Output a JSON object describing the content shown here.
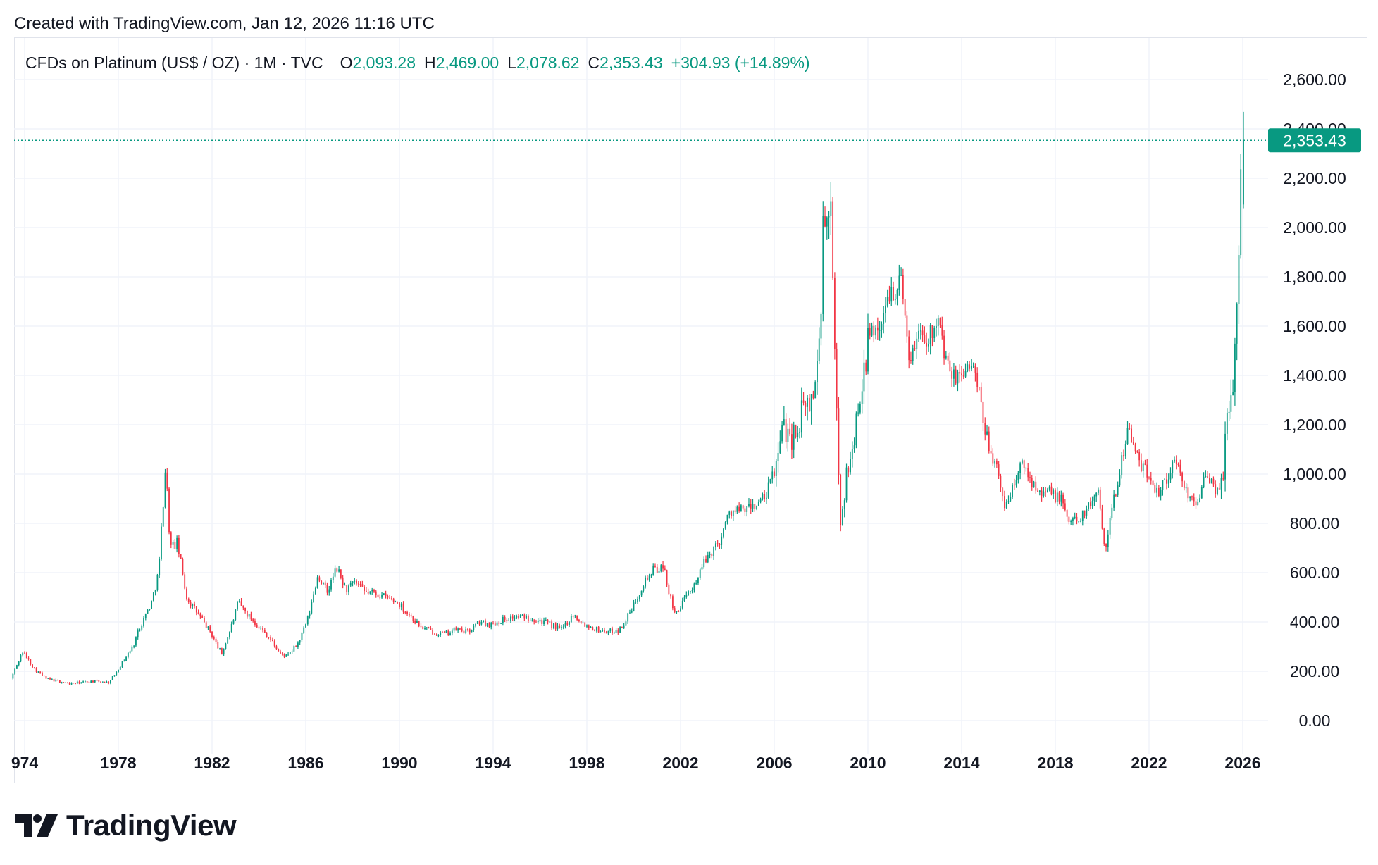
{
  "header": {
    "created_text": "Created with TradingView.com, Jan 12, 2026 11:16 UTC"
  },
  "legend": {
    "symbol": "CFDs on Platinum (US$ / OZ) · 1M · TVC",
    "open_label": "O",
    "open": "2,093.28",
    "high_label": "H",
    "high": "2,469.00",
    "low_label": "L",
    "low": "2,078.62",
    "close_label": "C",
    "close": "2,353.43",
    "change": "+304.93 (+14.89%)"
  },
  "price_tag": "2,353.43",
  "brand": {
    "name": "TradingView"
  },
  "colors": {
    "up": "#089981",
    "down": "#f23645",
    "grid": "#f0f3fa",
    "text": "#131722"
  },
  "chart_data": {
    "type": "candlestick",
    "title": "CFDs on Platinum (US$ / OZ) · 1M · TVC",
    "xlabel": "",
    "ylabel": "",
    "x_ticks": [
      "974",
      "1978",
      "1982",
      "1986",
      "1990",
      "1994",
      "1998",
      "2002",
      "2006",
      "2010",
      "2014",
      "2018",
      "2022",
      "2026"
    ],
    "y_ticks": [
      "0.00",
      "200.00",
      "400.00",
      "600.00",
      "800.00",
      "1,000.00",
      "1,200.00",
      "1,400.00",
      "1,600.00",
      "1,800.00",
      "2,000.00",
      "2,200.00",
      "2,400.00",
      "2,600.00"
    ],
    "ylim": [
      -100,
      2700
    ],
    "xlim": [
      1973.5,
      2027.0
    ],
    "last_close": 2353.43,
    "series": [
      {
        "name": "CFDs on Platinum (US$ / OZ)",
        "interval": "1M",
        "points": [
          [
            1973.5,
            170
          ],
          [
            1974.0,
            280
          ],
          [
            1974.5,
            210
          ],
          [
            1975.0,
            170
          ],
          [
            1976.0,
            150
          ],
          [
            1977.0,
            160
          ],
          [
            1977.7,
            155
          ],
          [
            1978.0,
            200
          ],
          [
            1978.7,
            300
          ],
          [
            1979.0,
            380
          ],
          [
            1979.5,
            480
          ],
          [
            1979.8,
            600
          ],
          [
            1980.1,
            1040
          ],
          [
            1980.3,
            700
          ],
          [
            1980.6,
            720
          ],
          [
            1981.0,
            500
          ],
          [
            1981.5,
            430
          ],
          [
            1982.0,
            360
          ],
          [
            1982.5,
            270
          ],
          [
            1982.9,
            380
          ],
          [
            1983.2,
            480
          ],
          [
            1983.6,
            430
          ],
          [
            1984.0,
            390
          ],
          [
            1984.5,
            340
          ],
          [
            1985.0,
            270
          ],
          [
            1985.3,
            260
          ],
          [
            1985.8,
            320
          ],
          [
            1986.2,
            420
          ],
          [
            1986.6,
            590
          ],
          [
            1987.0,
            520
          ],
          [
            1987.4,
            620
          ],
          [
            1987.8,
            530
          ],
          [
            1988.2,
            560
          ],
          [
            1988.6,
            520
          ],
          [
            1989.0,
            520
          ],
          [
            1989.5,
            500
          ],
          [
            1990.0,
            480
          ],
          [
            1990.5,
            430
          ],
          [
            1991.0,
            380
          ],
          [
            1991.5,
            360
          ],
          [
            1992.0,
            350
          ],
          [
            1992.5,
            370
          ],
          [
            1993.0,
            360
          ],
          [
            1993.5,
            400
          ],
          [
            1994.0,
            390
          ],
          [
            1994.5,
            410
          ],
          [
            1995.0,
            420
          ],
          [
            1995.5,
            420
          ],
          [
            1996.0,
            410
          ],
          [
            1996.5,
            390
          ],
          [
            1997.0,
            370
          ],
          [
            1997.5,
            430
          ],
          [
            1998.0,
            390
          ],
          [
            1998.5,
            370
          ],
          [
            1999.0,
            360
          ],
          [
            1999.5,
            370
          ],
          [
            2000.0,
            450
          ],
          [
            2000.5,
            560
          ],
          [
            2001.0,
            620
          ],
          [
            2001.4,
            610
          ],
          [
            2001.8,
            430
          ],
          [
            2002.2,
            480
          ],
          [
            2002.7,
            560
          ],
          [
            2003.2,
            660
          ],
          [
            2003.7,
            720
          ],
          [
            2004.2,
            850
          ],
          [
            2004.7,
            850
          ],
          [
            2005.2,
            870
          ],
          [
            2005.7,
            900
          ],
          [
            2006.2,
            1050
          ],
          [
            2006.5,
            1200
          ],
          [
            2006.9,
            1150
          ],
          [
            2007.3,
            1250
          ],
          [
            2007.7,
            1300
          ],
          [
            2008.0,
            1500
          ],
          [
            2008.2,
            2050
          ],
          [
            2008.5,
            2000
          ],
          [
            2008.7,
            1400
          ],
          [
            2008.9,
            800
          ],
          [
            2009.1,
            950
          ],
          [
            2009.5,
            1150
          ],
          [
            2009.9,
            1450
          ],
          [
            2010.3,
            1600
          ],
          [
            2010.7,
            1600
          ],
          [
            2011.0,
            1750
          ],
          [
            2011.5,
            1780
          ],
          [
            2011.9,
            1450
          ],
          [
            2012.3,
            1600
          ],
          [
            2012.7,
            1550
          ],
          [
            2013.0,
            1650
          ],
          [
            2013.5,
            1420
          ],
          [
            2013.9,
            1380
          ],
          [
            2014.3,
            1450
          ],
          [
            2014.7,
            1400
          ],
          [
            2015.0,
            1200
          ],
          [
            2015.5,
            1050
          ],
          [
            2015.9,
            870
          ],
          [
            2016.3,
            950
          ],
          [
            2016.7,
            1050
          ],
          [
            2017.0,
            980
          ],
          [
            2017.5,
            940
          ],
          [
            2017.9,
            920
          ],
          [
            2018.3,
            900
          ],
          [
            2018.7,
            800
          ],
          [
            2019.0,
            820
          ],
          [
            2019.5,
            860
          ],
          [
            2019.9,
            950
          ],
          [
            2020.2,
            700
          ],
          [
            2020.6,
            900
          ],
          [
            2020.9,
            1050
          ],
          [
            2021.2,
            1200
          ],
          [
            2021.6,
            1050
          ],
          [
            2022.0,
            1000
          ],
          [
            2022.5,
            930
          ],
          [
            2022.9,
            1000
          ],
          [
            2023.3,
            1050
          ],
          [
            2023.7,
            920
          ],
          [
            2024.1,
            900
          ],
          [
            2024.5,
            980
          ],
          [
            2024.9,
            940
          ],
          [
            2025.2,
            960
          ],
          [
            2025.5,
            1300
          ],
          [
            2025.8,
            1500
          ],
          [
            2025.95,
            2050
          ],
          [
            2026.03,
            2353.43
          ]
        ]
      }
    ]
  }
}
